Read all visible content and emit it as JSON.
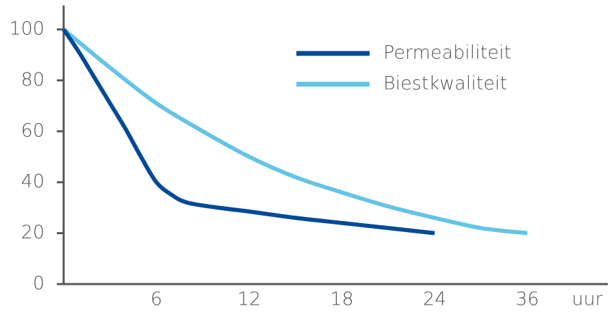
{
  "chart_data": {
    "type": "line",
    "x_label": "uur",
    "xlim": [
      0,
      46
    ],
    "xticks": [
      6,
      12,
      18,
      24,
      36
    ],
    "ylim": [
      0,
      100
    ],
    "yticks": [
      0,
      20,
      40,
      60,
      80,
      100
    ],
    "legend": "top-right",
    "series": [
      {
        "name": "Permeabiliteit",
        "color": "#004a97",
        "x": [
          0,
          1,
          2,
          3,
          4,
          5,
          6,
          7,
          8,
          10,
          12,
          15,
          18,
          21,
          24
        ],
        "values": [
          100,
          91,
          81,
          71,
          61,
          50,
          40,
          35,
          32,
          30,
          28.5,
          26,
          24,
          22,
          20
        ]
      },
      {
        "name": "Biestkwaliteit",
        "color": "#64c4e4",
        "x": [
          0,
          3,
          6,
          9,
          12,
          15,
          18,
          21,
          24,
          30,
          36
        ],
        "values": [
          100,
          85,
          71,
          60,
          50,
          42,
          36,
          30.5,
          26,
          22,
          20
        ]
      }
    ]
  }
}
